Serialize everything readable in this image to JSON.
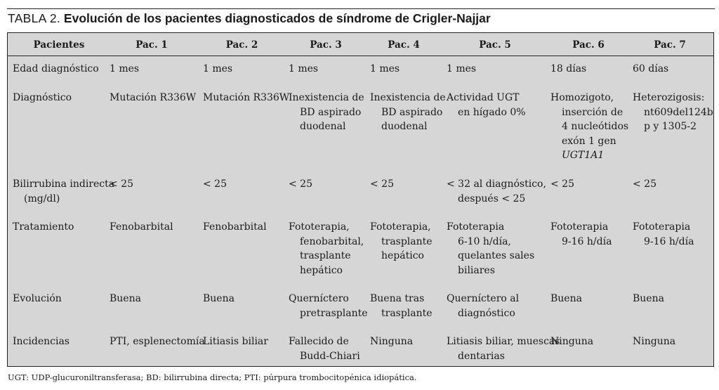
{
  "title": {
    "tag": "TABLA 2.",
    "text": "Evolución de los pacientes diagnosticados de síndrome de Crigler-Najjar"
  },
  "headers": [
    "Pacientes",
    "Pac. 1",
    "Pac. 2",
    "Pac. 3",
    "Pac. 4",
    "Pac. 5",
    "Pac. 6",
    "Pac. 7"
  ],
  "rows": {
    "edad": {
      "label": "Edad diagnóstico",
      "cells": [
        "1 mes",
        "1 mes",
        "1 mes",
        "1 mes",
        "1 mes",
        "18 días",
        "60 días"
      ]
    },
    "diagnostico": {
      "label": "Diagnóstico",
      "cells": [
        [
          "Mutación R336W"
        ],
        [
          "Mutación R336W"
        ],
        [
          "Inexistencia de",
          "BD aspirado",
          "duodenal"
        ],
        [
          "Inexistencia de",
          "BD aspirado",
          "duodenal"
        ],
        [
          "Actividad UGT",
          "en hígado 0%"
        ],
        [
          "Homozigoto,",
          "inserción de",
          "4 nucleótidos",
          "exón 1 gen",
          "UGT1A1"
        ],
        [
          "Heterozigosis:",
          "nt609del124b",
          "p y 1305-2"
        ]
      ]
    },
    "bilirrubina": {
      "label": [
        "Bilirrubina indirecta",
        "(mg/dl)"
      ],
      "cells": [
        [
          "< 25"
        ],
        [
          "< 25"
        ],
        [
          "< 25"
        ],
        [
          "< 25"
        ],
        [
          "< 32 al diagnóstico,",
          "después < 25"
        ],
        [
          "< 25"
        ],
        [
          "< 25"
        ]
      ]
    },
    "tratamiento": {
      "label": "Tratamiento",
      "cells": [
        [
          "Fenobarbital"
        ],
        [
          "Fenobarbital"
        ],
        [
          "Fototerapia,",
          "fenobarbital,",
          "trasplante",
          "hepático"
        ],
        [
          "Fototerapia,",
          "trasplante",
          "hepático"
        ],
        [
          "Fototerapia",
          "6-10 h/día,",
          "quelantes sales",
          "biliares"
        ],
        [
          "Fototerapia",
          "9-16 h/día"
        ],
        [
          "Fototerapia",
          "9-16 h/día"
        ]
      ]
    },
    "evolucion": {
      "label": "Evolución",
      "cells": [
        [
          "Buena"
        ],
        [
          "Buena"
        ],
        [
          "Querníctero",
          "pretrasplante"
        ],
        [
          "Buena tras",
          "trasplante"
        ],
        [
          "Querníctero al",
          "diagnóstico"
        ],
        [
          "Buena"
        ],
        [
          "Buena"
        ]
      ]
    },
    "incidencias": {
      "label": "Incidencias",
      "cells": [
        [
          "PTI, esplenectomía"
        ],
        [
          "Litiasis biliar"
        ],
        [
          "Fallecido de",
          "Budd-Chiari"
        ],
        [
          "Ninguna"
        ],
        [
          "Litiasis biliar, muescas",
          "dentarias"
        ],
        [
          "Ninguna"
        ],
        [
          "Ninguna"
        ]
      ]
    }
  },
  "footnote": "UGT: UDP-glucuroniltransferasa; BD: bilirrubina directa; PTI: púrpura trombocitopénica idiopática."
}
